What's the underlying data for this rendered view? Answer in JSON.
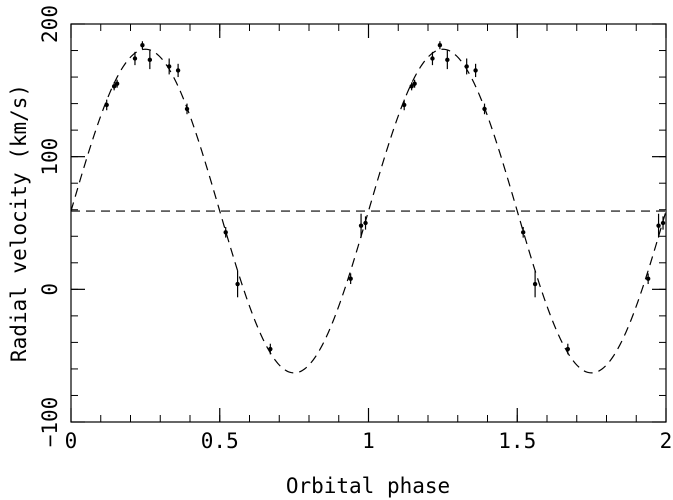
{
  "chart_data": {
    "type": "scatter",
    "xlabel": "Orbital phase",
    "ylabel": "Radial velocity (km/s)",
    "xlim": [
      0,
      2
    ],
    "ylim": [
      -100,
      200
    ],
    "x_ticks": [
      {
        "value": 0,
        "label": "0"
      },
      {
        "value": 0.5,
        "label": "0.5"
      },
      {
        "value": 1,
        "label": "1"
      },
      {
        "value": 1.5,
        "label": "1.5"
      },
      {
        "value": 2,
        "label": "2"
      }
    ],
    "y_ticks": [
      {
        "value": -100,
        "label": "−100"
      },
      {
        "value": 0,
        "label": "0"
      },
      {
        "value": 100,
        "label": "100"
      },
      {
        "value": 200,
        "label": "200"
      }
    ],
    "x_minor_step": 0.1,
    "y_minor_step": 20,
    "grid": false,
    "mirror_ticks": true,
    "colors": {
      "axes": "#000000",
      "points": "#000000",
      "curves": "#000000"
    },
    "fit_curve": {
      "style": "dashed",
      "model": "systemic + amplitude * sin(2*pi*phase)",
      "systemic_velocity": 59,
      "amplitude": 122
    },
    "systemic_line": {
      "style": "dashed",
      "y": 59
    },
    "series": [
      {
        "marker": "point-with-errorbar",
        "points": [
          {
            "x": 0.12,
            "y": 139,
            "err": 4
          },
          {
            "x": 0.145,
            "y": 153,
            "err": 3
          },
          {
            "x": 0.155,
            "y": 155,
            "err": 3
          },
          {
            "x": 0.215,
            "y": 174,
            "err": 5
          },
          {
            "x": 0.24,
            "y": 184,
            "err": 3
          },
          {
            "x": 0.265,
            "y": 173,
            "err": 7
          },
          {
            "x": 0.33,
            "y": 168,
            "err": 6
          },
          {
            "x": 0.36,
            "y": 165,
            "err": 5
          },
          {
            "x": 0.39,
            "y": 136,
            "err": 4
          },
          {
            "x": 0.52,
            "y": 43,
            "err": 4
          },
          {
            "x": 0.56,
            "y": 4,
            "err": 10
          },
          {
            "x": 0.67,
            "y": -45,
            "err": 4
          },
          {
            "x": 0.94,
            "y": 8,
            "err": 4
          },
          {
            "x": 0.975,
            "y": 48,
            "err": 9
          },
          {
            "x": 0.99,
            "y": 50,
            "err": 5
          },
          {
            "x": 1.12,
            "y": 139,
            "err": 4
          },
          {
            "x": 1.145,
            "y": 153,
            "err": 3
          },
          {
            "x": 1.155,
            "y": 155,
            "err": 3
          },
          {
            "x": 1.215,
            "y": 174,
            "err": 5
          },
          {
            "x": 1.24,
            "y": 184,
            "err": 3
          },
          {
            "x": 1.265,
            "y": 173,
            "err": 7
          },
          {
            "x": 1.33,
            "y": 168,
            "err": 6
          },
          {
            "x": 1.36,
            "y": 165,
            "err": 5
          },
          {
            "x": 1.39,
            "y": 136,
            "err": 4
          },
          {
            "x": 1.52,
            "y": 43,
            "err": 4
          },
          {
            "x": 1.56,
            "y": 4,
            "err": 10
          },
          {
            "x": 1.67,
            "y": -45,
            "err": 4
          },
          {
            "x": 1.94,
            "y": 8,
            "err": 4
          },
          {
            "x": 1.975,
            "y": 48,
            "err": 9
          },
          {
            "x": 1.99,
            "y": 50,
            "err": 5
          }
        ]
      }
    ]
  }
}
